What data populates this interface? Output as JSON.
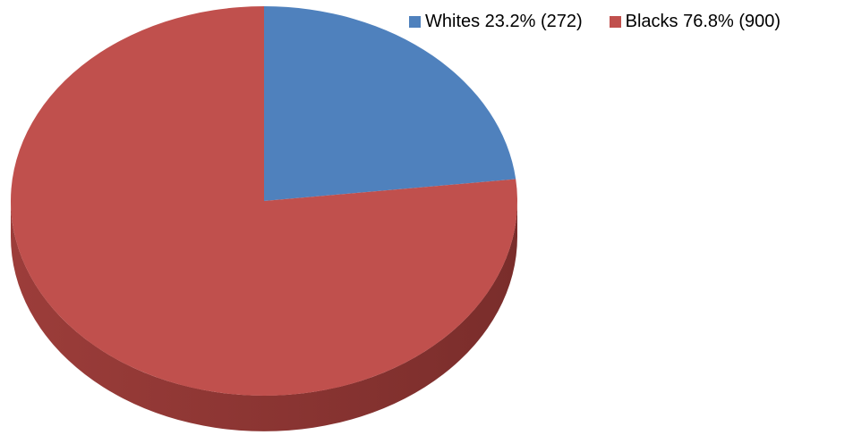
{
  "chart_data": {
    "type": "pie",
    "style": "3d",
    "categories": [
      "Whites",
      "Blacks"
    ],
    "values": [
      272,
      900
    ],
    "percentages": [
      23.2,
      76.8
    ],
    "colors": [
      "#4f81bd",
      "#c0504d"
    ],
    "legend_position": "top-right",
    "legend": [
      {
        "label": "Whites 23.2% (272)",
        "color": "#4f81bd"
      },
      {
        "label": "Blacks 76.8% (900)",
        "color": "#c0504d"
      }
    ]
  }
}
